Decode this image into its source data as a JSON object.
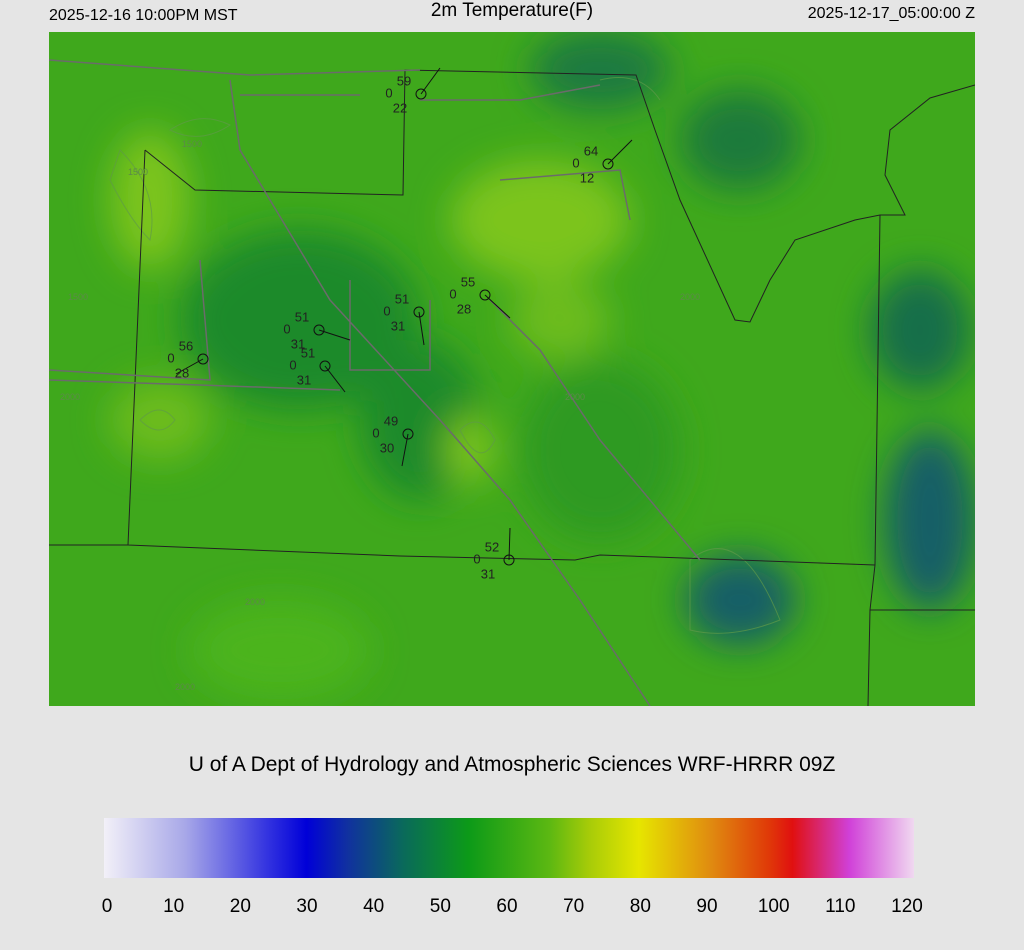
{
  "header": {
    "left": "2025-12-16 10:00PM MST",
    "title": "2m Temperature(F)",
    "right": "2025-12-17_05:00:00 Z"
  },
  "stations": [
    {
      "temperature": 59,
      "cloud": 0,
      "dewpoint": 22
    },
    {
      "temperature": 64,
      "cloud": 0,
      "dewpoint": 12
    },
    {
      "temperature": 55,
      "cloud": 0,
      "dewpoint": 28
    },
    {
      "temperature": 51,
      "cloud": 0,
      "dewpoint": 31
    },
    {
      "temperature": 51,
      "cloud": 0,
      "dewpoint": 31
    },
    {
      "temperature": 51,
      "cloud": 0,
      "dewpoint": 31
    },
    {
      "temperature": 56,
      "cloud": 0,
      "dewpoint": 28
    },
    {
      "temperature": 49,
      "cloud": 0,
      "dewpoint": 30
    },
    {
      "temperature": 52,
      "cloud": 0,
      "dewpoint": 31
    }
  ],
  "contour_labels": [
    "1500",
    "1500",
    "1500",
    "2000",
    "2000",
    "2000",
    "2000",
    "2000"
  ],
  "credit": "U of A Dept of Hydrology and Atmospheric Sciences WRF-HRRR 09Z",
  "colorbar": {
    "range": [
      0,
      120
    ],
    "ticks": [
      0,
      10,
      20,
      30,
      40,
      50,
      60,
      70,
      80,
      90,
      100,
      110,
      120
    ]
  }
}
